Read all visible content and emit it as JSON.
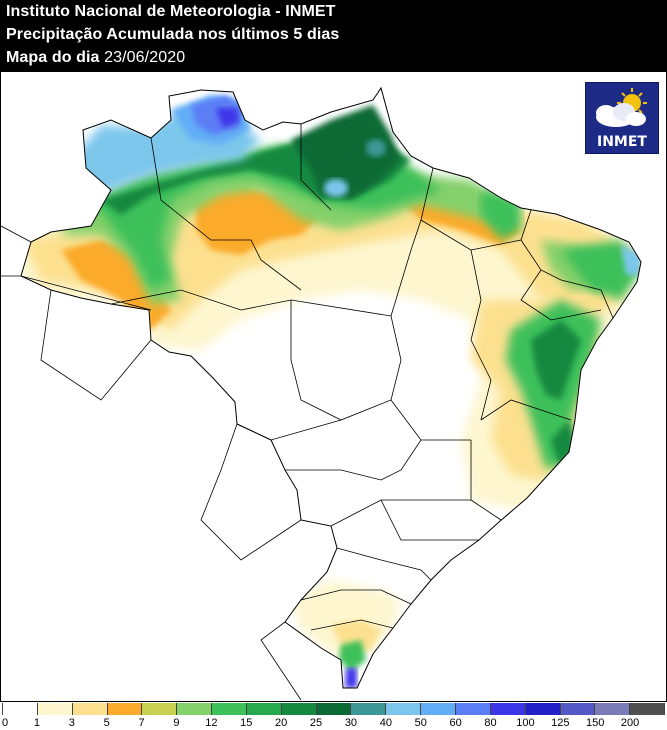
{
  "header": {
    "line1": "Instituto Nacional de Meteorologia - INMET",
    "line2": "Precipitação Acumulada nos últimos 5 dias",
    "line3_label": "Mapa do dia",
    "line3_date": "23/06/2020"
  },
  "logo": {
    "text": "INMET",
    "icon": "sun-cloud-icon"
  },
  "legend": {
    "ticks": [
      "0",
      "1",
      "3",
      "5",
      "7",
      "9",
      "12",
      "15",
      "20",
      "25",
      "30",
      "40",
      "50",
      "60",
      "80",
      "100",
      "125",
      "150",
      "200"
    ],
    "colors": [
      "#ffffff",
      "#fdf6cf",
      "#fce08f",
      "#fbaa2c",
      "#c9cf50",
      "#84d06a",
      "#3ec05a",
      "#27a94e",
      "#14893f",
      "#0b6a34",
      "#3c9796",
      "#7cc6ec",
      "#62aef6",
      "#5b7ef5",
      "#3c36e8",
      "#2420c7",
      "#5559c5",
      "#7b7bb8",
      "#505050"
    ]
  }
}
